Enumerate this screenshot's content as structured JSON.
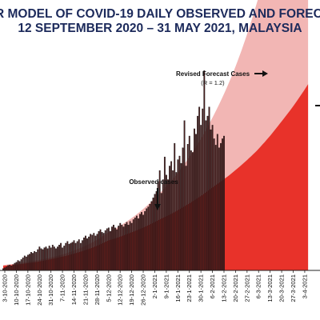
{
  "header": {
    "title_line_1": "R MODEL OF COVID-19 DAILY OBSERVED AND FORECAS",
    "title_line_2": "12 SEPTEMBER 2020 – 31 MAY 2021, MALAYSIA"
  },
  "annotations": {
    "revised_forecast": "Revised Forecast Cases",
    "revised_forecast_r": "(R = 1.2)",
    "observed": "Observed cases"
  },
  "colors": {
    "observed_bar": "#4a1e1e",
    "observed_bar_edge": "#111111",
    "forecast_revised": "#f2b6b4",
    "forecast_baseline": "#e8322a",
    "title": "#1c2a5b"
  },
  "chart_data": {
    "type": "bar",
    "title": "R MODEL OF COVID-19 DAILY OBSERVED AND FORECAS",
    "subtitle": "12 SEPTEMBER 2020 – 31 MAY 2021, MALAYSIA",
    "xlabel": "",
    "ylabel": "",
    "x_axis": "date",
    "tick_labels": [
      "3-10-2020",
      "10-10-2020",
      "17-10-2020",
      "24-10-2020",
      "31-10-2020",
      "7-11-2020",
      "14-11-2020",
      "21-11-2020",
      "28-11-2020",
      "5-12-2020",
      "12-12-2020",
      "19-12-2020",
      "26-12-2020",
      "2-1-2021",
      "9-1-2021",
      "16-1-2021",
      "23-1-2021",
      "30-1-2021",
      "6-2-2021",
      "13-2-2021",
      "20-2-2021",
      "27-2-2021",
      "6-3-2021",
      "13-3-2021",
      "20-3-2021",
      "27-3-2021",
      "3-4-2021"
    ],
    "observed_start_date": "2020-09-28",
    "observed_values": [
      20,
      30,
      40,
      55,
      60,
      50,
      65,
      80,
      90,
      110,
      100,
      120,
      140,
      160,
      150,
      170,
      180,
      200,
      190,
      210,
      200,
      230,
      260,
      240,
      230,
      250,
      260,
      240,
      270,
      250,
      280,
      260,
      240,
      260,
      280,
      300,
      250,
      270,
      300,
      320,
      290,
      300,
      310,
      330,
      300,
      320,
      340,
      300,
      330,
      360,
      380,
      350,
      370,
      400,
      390,
      410,
      380,
      400,
      430,
      450,
      420,
      410,
      440,
      460,
      470,
      430,
      480,
      500,
      470,
      450,
      490,
      520,
      500,
      480,
      510,
      530,
      500,
      540,
      520,
      560,
      580,
      600,
      570,
      620,
      640,
      610,
      650,
      680,
      700,
      730,
      760,
      800,
      840,
      870,
      980,
      1100,
      850,
      1000,
      1250,
      1050,
      1000,
      1150,
      1200,
      1100,
      1400,
      1080,
      1220,
      1260,
      1180,
      1350,
      1650,
      1150,
      1390,
      1480,
      1320,
      1300,
      1560,
      1500,
      1700,
      1800,
      1600,
      1780,
      2200,
      1650,
      1700,
      1800,
      1550,
      1600,
      1450,
      1380,
      1500,
      1350,
      1400,
      1450,
      1480
    ],
    "series": [
      {
        "name": "Revised Forecast Cases",
        "r": "(R = 1.2)",
        "type": "area",
        "points": [
          [
            "2020-09-28",
            60
          ],
          [
            "2020-10-31",
            160
          ],
          [
            "2020-12-01",
            420
          ],
          [
            "2021-01-01",
            850
          ],
          [
            "2021-02-01",
            1650
          ],
          [
            "2021-02-15",
            2200
          ],
          [
            "2021-03-01",
            2950
          ],
          [
            "2021-03-15",
            3900
          ],
          [
            "2021-04-01",
            5200
          ]
        ]
      },
      {
        "name": "",
        "type": "area",
        "points": [
          [
            "2020-09-28",
            50
          ],
          [
            "2020-10-31",
            140
          ],
          [
            "2020-12-01",
            330
          ],
          [
            "2021-01-01",
            560
          ],
          [
            "2021-02-01",
            900
          ],
          [
            "2021-02-15",
            1090
          ],
          [
            "2021-03-01",
            1320
          ],
          [
            "2021-03-15",
            1620
          ],
          [
            "2021-04-01",
            2050
          ]
        ]
      }
    ],
    "grid": false,
    "legend": "none"
  }
}
